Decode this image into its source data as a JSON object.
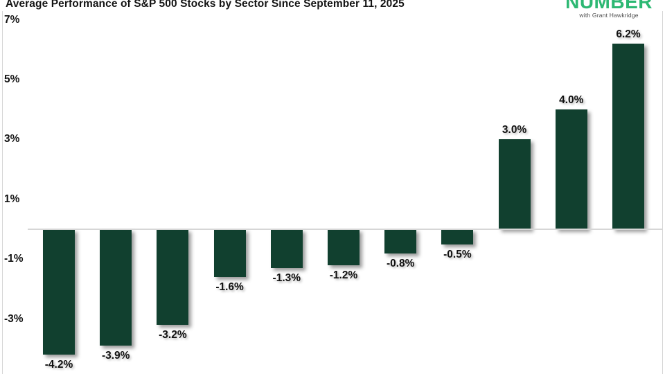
{
  "header": {
    "title": "Average Performance of S&P 500 Stocks by Sector Since September 11, 2025"
  },
  "branding": {
    "logo_text": "NUMBER",
    "tagline": "with Grant Hawkridge",
    "logo_color": "#2db873"
  },
  "chart_data": {
    "type": "bar",
    "title": "Average Performance of S&P 500 Stocks by Sector Since September 11, 2025",
    "values": [
      -4.2,
      -3.9,
      -3.2,
      -1.6,
      -1.3,
      -1.2,
      -0.8,
      -0.5,
      3.0,
      4.0,
      6.2
    ],
    "bar_labels": [
      "-4.2%",
      "-3.9%",
      "-3.2%",
      "-1.6%",
      "-1.3%",
      "-1.2%",
      "-0.8%",
      "-0.5%",
      "3.0%",
      "4.0%",
      "6.2%"
    ],
    "yticks": [
      {
        "label": "7%",
        "value": 7
      },
      {
        "label": "5%",
        "value": 5
      },
      {
        "label": "3%",
        "value": 3
      },
      {
        "label": "1%",
        "value": 1
      },
      {
        "label": "-1%",
        "value": -1
      },
      {
        "label": "-3%",
        "value": -3
      }
    ],
    "ylim": [
      -5,
      7
    ],
    "xlabel": "",
    "ylabel": "",
    "grid": false,
    "legend": false,
    "bar_color": "#11402f",
    "label_color": "#111111",
    "axis_line_color": "#d6d6d6"
  }
}
